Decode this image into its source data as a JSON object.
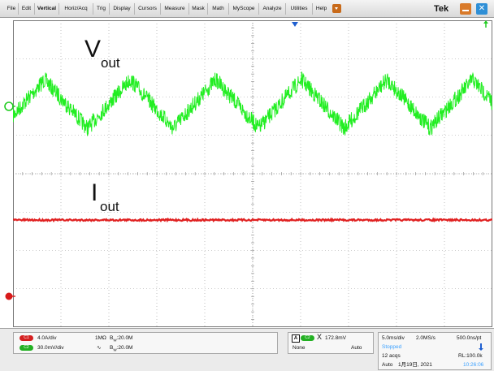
{
  "menubar": {
    "items": [
      "File",
      "Edit",
      "Vertical",
      "Horiz/Acq",
      "Trig",
      "Display",
      "Cursors",
      "Measure",
      "Mask",
      "Math",
      "MyScope",
      "Analyze",
      "Utilities",
      "Help"
    ],
    "brand": "Tek",
    "icons": [
      "help-dropdown-icon",
      "minimize-icon",
      "close-icon"
    ]
  },
  "waveform": {
    "vout_label_main": "V",
    "vout_label_sub": "out",
    "iout_label_main": "I",
    "iout_label_sub": "out",
    "vout_cycles_visible": 5.6,
    "colors": {
      "ch1": "#e02020",
      "ch2": "#22ee22",
      "grid": "#9a9a9a",
      "marker": "#1f5fd0"
    }
  },
  "channels": {
    "ch1": {
      "badge": "C1",
      "scale": "4.0A/div",
      "coupling": "1MΩ",
      "bandwidth": "20.0M"
    },
    "ch2": {
      "badge": "C2",
      "scale": "30.0mV/div",
      "coupling_symbol": "∿",
      "bandwidth": "20.0M"
    },
    "bandwidth_prefix": "B",
    "bandwidth_sub": "W"
  },
  "trigger": {
    "badge": "A",
    "source_badge": "C2",
    "symbol": "X",
    "level": "172.8mV",
    "type": "None",
    "mode": "Auto"
  },
  "acquisition": {
    "time_div": "5.0ms/div",
    "sample_rate": "2.0MS/s",
    "resolution": "500.0ns/pt",
    "status": "Stopped",
    "acqs": "12 acqs",
    "record_length": "RL:100.0k",
    "mode": "Auto",
    "date": "1月19日, 2021",
    "time": "10:26:06"
  }
}
